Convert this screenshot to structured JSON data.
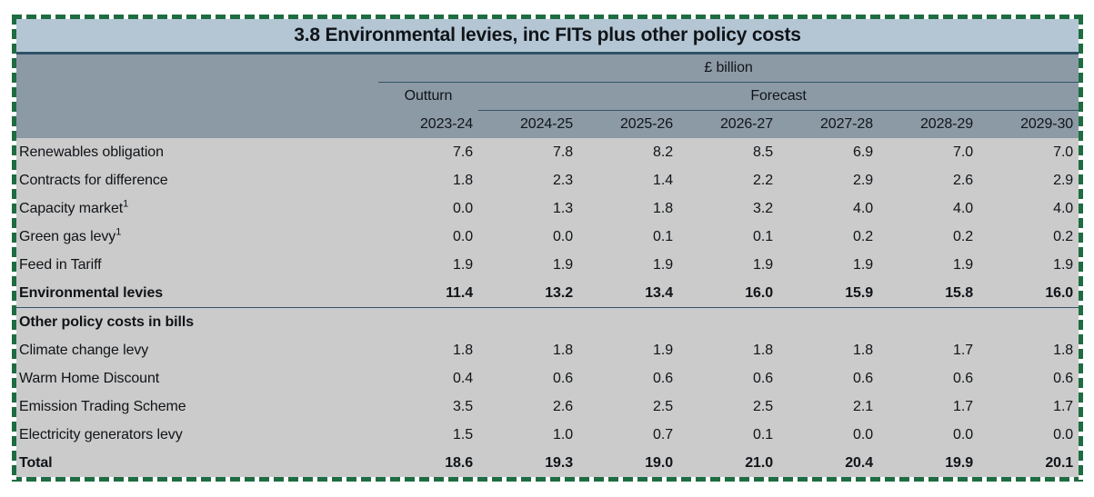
{
  "title": "3.8 Environmental levies, inc FITs plus other policy costs",
  "header": {
    "unit": "£ billion",
    "outturn": "Outturn",
    "forecast": "Forecast",
    "years": [
      "2023-24",
      "2024-25",
      "2025-26",
      "2026-27",
      "2027-28",
      "2028-29",
      "2029-30"
    ]
  },
  "rows": [
    {
      "label": "Renewables obligation",
      "values": [
        "7.6",
        "7.8",
        "8.2",
        "8.5",
        "6.9",
        "7.0",
        "7.0"
      ]
    },
    {
      "label": "Contracts for difference",
      "values": [
        "1.8",
        "2.3",
        "1.4",
        "2.2",
        "2.9",
        "2.6",
        "2.9"
      ]
    },
    {
      "label": "Capacity market",
      "sup": "1",
      "values": [
        "0.0",
        "1.3",
        "1.8",
        "3.2",
        "4.0",
        "4.0",
        "4.0"
      ]
    },
    {
      "label": "Green gas levy",
      "sup": "1",
      "values": [
        "0.0",
        "0.0",
        "0.1",
        "0.1",
        "0.2",
        "0.2",
        "0.2"
      ]
    },
    {
      "label": "Feed in Tariff",
      "values": [
        "1.9",
        "1.9",
        "1.9",
        "1.9",
        "1.9",
        "1.9",
        "1.9"
      ]
    },
    {
      "label": "Environmental levies",
      "bold": true,
      "section_end": true,
      "values": [
        "11.4",
        "13.2",
        "13.4",
        "16.0",
        "15.9",
        "15.8",
        "16.0"
      ]
    },
    {
      "label": "Other policy costs in bills",
      "bold": true,
      "values": [
        "",
        "",
        "",
        "",
        "",
        "",
        ""
      ]
    },
    {
      "label": "Climate change levy",
      "values": [
        "1.8",
        "1.8",
        "1.9",
        "1.8",
        "1.8",
        "1.7",
        "1.8"
      ]
    },
    {
      "label": "Warm Home Discount",
      "values": [
        "0.4",
        "0.6",
        "0.6",
        "0.6",
        "0.6",
        "0.6",
        "0.6"
      ]
    },
    {
      "label": "Emission Trading Scheme",
      "values": [
        "3.5",
        "2.6",
        "2.5",
        "2.5",
        "2.1",
        "1.7",
        "1.7"
      ]
    },
    {
      "label": "Electricity generators levy",
      "values": [
        "1.5",
        "1.0",
        "0.7",
        "0.1",
        "0.0",
        "0.0",
        "0.0"
      ]
    },
    {
      "label": "Total",
      "bold": true,
      "values": [
        "18.6",
        "19.3",
        "19.0",
        "21.0",
        "20.4",
        "19.9",
        "20.1"
      ]
    }
  ],
  "colors": {
    "selection_border_green": "#1E6C41",
    "title_bar_bg": "#B4C6D4",
    "header_bg": "#8C9AA6",
    "body_row_bg": "#CBCBCB",
    "divider_navy": "#2F5168",
    "rule_line": "#33536B",
    "text": "#101418"
  }
}
